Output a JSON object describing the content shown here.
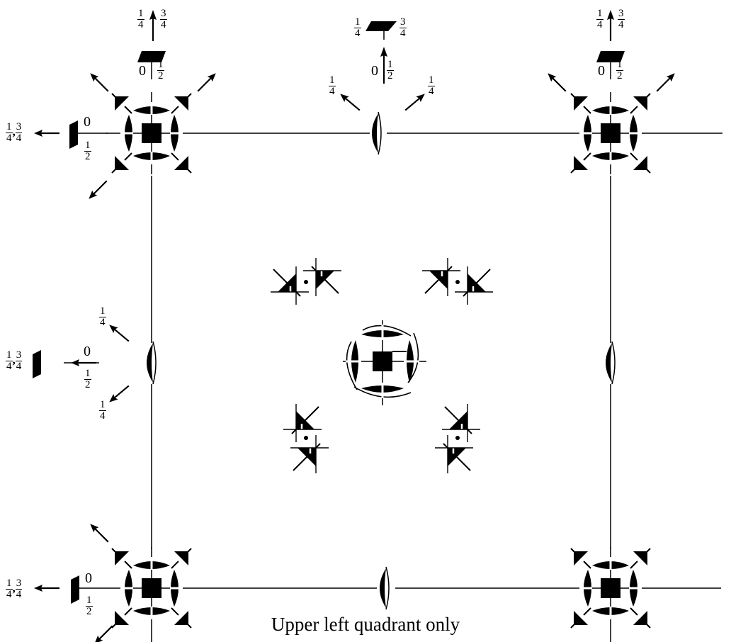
{
  "caption": "Upper left quadrant only",
  "labels": {
    "tl_top_left_quarter": "1/4",
    "tl_top_right_three_quarter": "3/4",
    "tl_top_zero": "0",
    "tl_top_half": "1/2",
    "tl_left_quarter_pair": "1/4, 3/4",
    "tl_left_zero": "0",
    "tl_left_half": "1/2",
    "tm_top_quarter": "1/4",
    "tm_top_three_quarter": "3/4",
    "tm_zero": "0",
    "tm_half": "1/2",
    "tm_left_quarter": "1/4",
    "tm_right_quarter": "1/4",
    "tr_top_quarter": "1/4",
    "tr_top_three_quarter": "3/4",
    "tr_zero": "0",
    "tr_half": "1/2",
    "ml_top_quarter": "1/4",
    "ml_quarter_pair": "1/4, 3/4",
    "ml_zero": "0",
    "ml_half": "1/2",
    "ml_bottom_quarter": "1/4",
    "bl_quarter_pair": "1/4, 3/4",
    "bl_zero": "0",
    "bl_half": "1/2"
  }
}
